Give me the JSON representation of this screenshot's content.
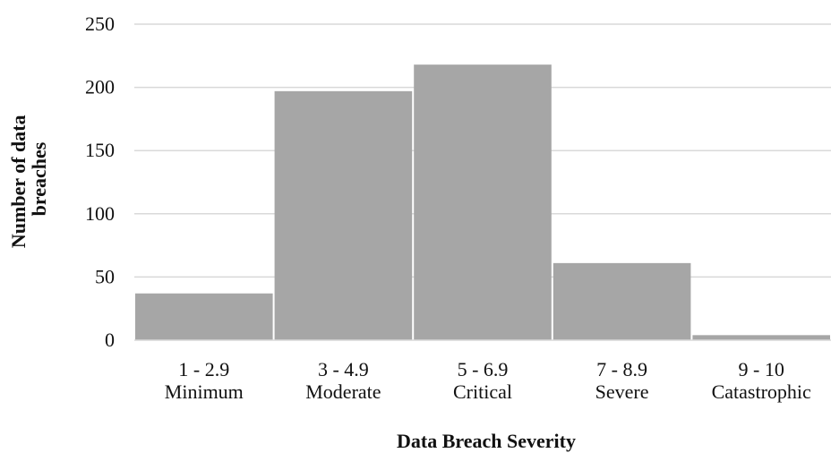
{
  "chart_data": {
    "type": "bar",
    "categories": [
      [
        "1 - 2.9",
        "Minimum"
      ],
      [
        "3 -  4.9",
        "Moderate"
      ],
      [
        "5 -  6.9",
        "Critical"
      ],
      [
        "7 - 8.9",
        "Severe"
      ],
      [
        "9 - 10",
        "Catastrophic"
      ]
    ],
    "values": [
      37,
      197,
      218,
      61,
      4
    ],
    "xlabel": "Data Breach Severity",
    "ylabel": [
      "Number of data",
      "breaches"
    ],
    "ylim": [
      0,
      250
    ],
    "yticks": [
      0,
      50,
      100,
      150,
      200,
      250
    ],
    "grid": true,
    "bar_color": "#a6a6a6",
    "grid_color": "#d9d9d9"
  }
}
